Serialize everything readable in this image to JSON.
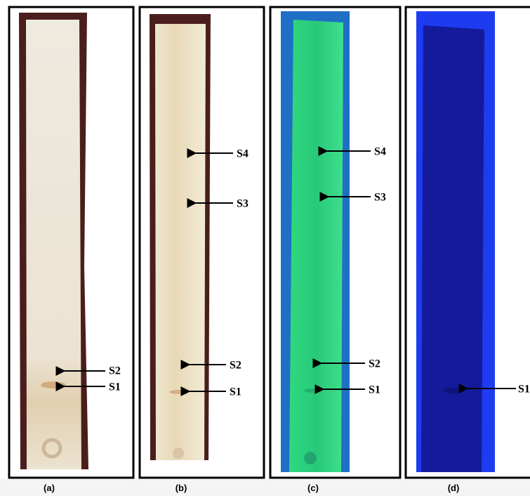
{
  "panels": [
    {
      "caption": "(a)",
      "spots": [
        "S2",
        "S1"
      ]
    },
    {
      "caption": "(b)",
      "spots": [
        "S4",
        "S3",
        "S2",
        "S1"
      ]
    },
    {
      "caption": "(c)",
      "spots": [
        "S4",
        "S3",
        "S2",
        "S1"
      ]
    },
    {
      "caption": "(d)",
      "spots": [
        "S1"
      ]
    }
  ]
}
